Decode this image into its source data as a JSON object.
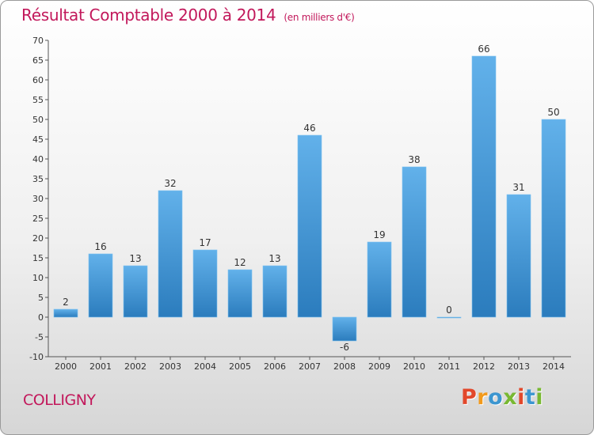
{
  "title": "Résultat Comptable 2000 à 2014",
  "unit_note": "(en milliers d'€)",
  "commune": "COLLIGNY",
  "logo": {
    "letters": [
      "P",
      "r",
      "o",
      "x",
      "i",
      "t",
      "i"
    ],
    "colors": [
      "#e2482b",
      "#f29a1c",
      "#3c96d0",
      "#78b832",
      "#e2482b",
      "#3c96d0",
      "#78b832"
    ]
  },
  "colors": {
    "bar_light": "#62b1ea",
    "bar_dark": "#2b7cbd",
    "title": "#c2185b"
  },
  "chart_data": {
    "type": "bar",
    "title": "Résultat Comptable 2000 à 2014",
    "ylabel": "(en milliers d'€)",
    "categories": [
      "2000",
      "2001",
      "2002",
      "2003",
      "2004",
      "2005",
      "2006",
      "2007",
      "2008",
      "2009",
      "2010",
      "2011",
      "2012",
      "2013",
      "2014"
    ],
    "values": [
      2,
      16,
      13,
      32,
      17,
      12,
      13,
      46,
      -6,
      19,
      38,
      0,
      66,
      31,
      50
    ],
    "ylim": [
      -10,
      70
    ],
    "yticks": [
      -10,
      -5,
      0,
      5,
      10,
      15,
      20,
      25,
      30,
      35,
      40,
      45,
      50,
      55,
      60,
      65,
      70
    ],
    "grid": false
  }
}
